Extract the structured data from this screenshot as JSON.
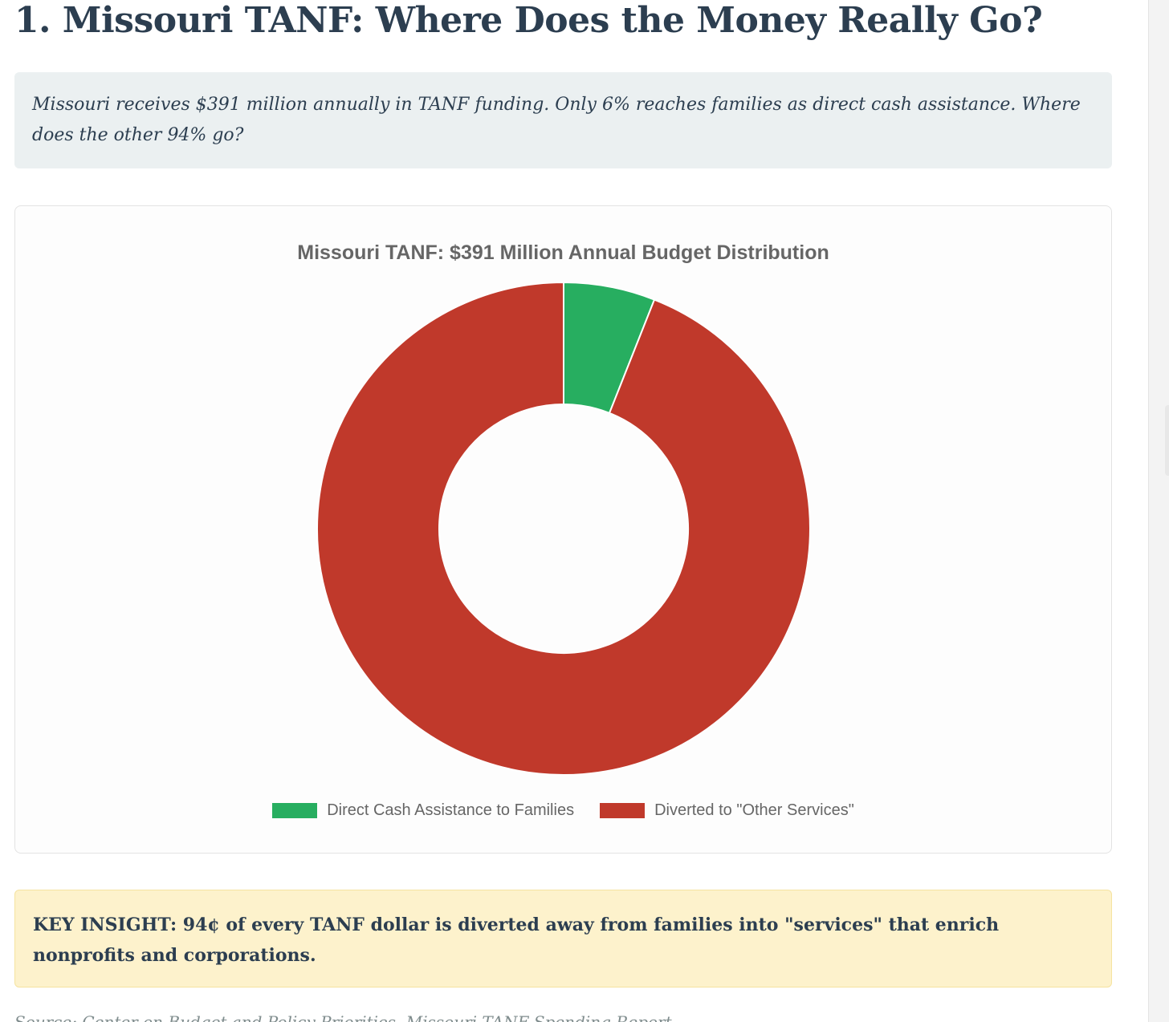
{
  "page": {
    "title": "1. Missouri TANF: Where Does the Money Really Go?",
    "intro": "Missouri receives $391 million annually in TANF funding. Only 6% reaches families as direct cash assistance. Where does the other 94% go?",
    "insight": "KEY INSIGHT: 94¢ of every TANF dollar is diverted away from families into \"services\" that enrich nonprofits and corporations.",
    "source": "Source: Center on Budget and Policy Priorities, Missouri TANF Spending Report"
  },
  "chart_data": {
    "type": "pie",
    "variant": "doughnut",
    "title": "Missouri TANF: $391 Million Annual Budget Distribution",
    "categories": [
      "Direct Cash Assistance to Families",
      "Diverted to \"Other Services\""
    ],
    "values": [
      6,
      94
    ],
    "colors": [
      "#27ae60",
      "#c0392b"
    ],
    "legend_position": "bottom",
    "start_angle": "top",
    "direction": "clockwise"
  }
}
